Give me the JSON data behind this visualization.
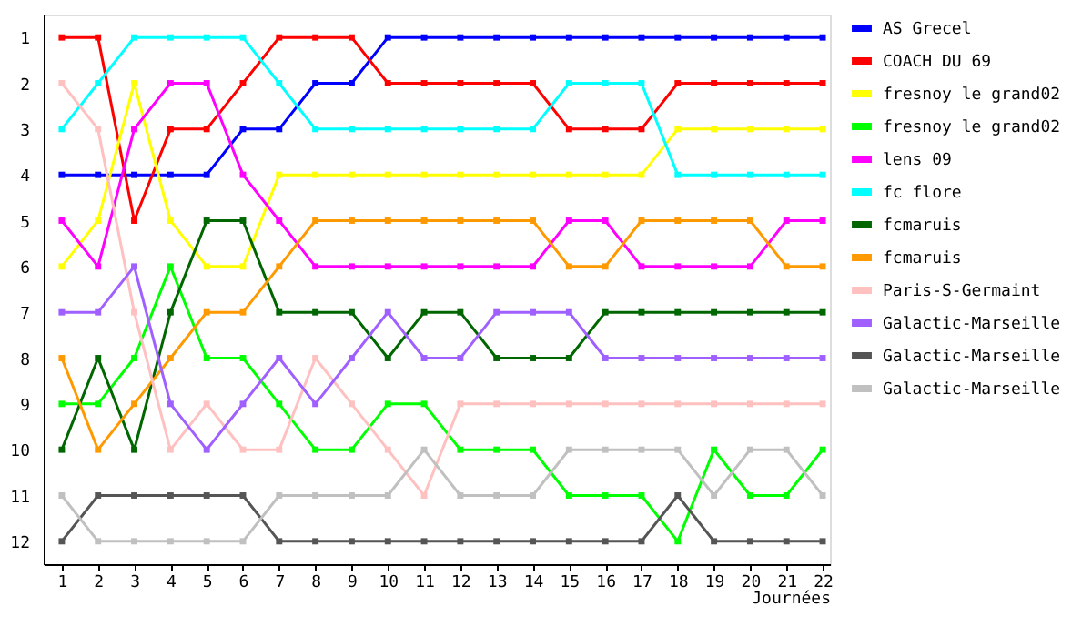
{
  "chart_data": {
    "type": "line",
    "xlabel": "Journées",
    "x": [
      1,
      2,
      3,
      4,
      5,
      6,
      7,
      8,
      9,
      10,
      11,
      12,
      13,
      14,
      15,
      16,
      17,
      18,
      19,
      20,
      21,
      22
    ],
    "xlim": [
      0.5,
      22.2
    ],
    "xticks": [
      1,
      2,
      3,
      4,
      5,
      6,
      7,
      8,
      9,
      10,
      11,
      12,
      13,
      14,
      15,
      16,
      17,
      18,
      19,
      20,
      21,
      22
    ],
    "ylim": [
      12.5,
      0.5
    ],
    "yticks": [
      1,
      2,
      3,
      4,
      5,
      6,
      7,
      8,
      9,
      10,
      11,
      12
    ],
    "grid": false,
    "legend": "right",
    "marker": "square",
    "line_style": "solid",
    "series": [
      {
        "name": "AS Grecel",
        "color": "#0000ff",
        "values": [
          4,
          4,
          4,
          4,
          4,
          3,
          3,
          2,
          2,
          1,
          1,
          1,
          1,
          1,
          1,
          1,
          1,
          1,
          1,
          1,
          1,
          1
        ]
      },
      {
        "name": "COACH DU 69",
        "color": "#ff0000",
        "values": [
          1,
          1,
          5,
          3,
          3,
          2,
          1,
          1,
          1,
          2,
          2,
          2,
          2,
          2,
          3,
          3,
          3,
          2,
          2,
          2,
          2,
          2
        ]
      },
      {
        "name": "fresnoy le grand02",
        "color": "#ffff00",
        "values": [
          6,
          5,
          2,
          5,
          6,
          6,
          4,
          4,
          4,
          4,
          4,
          4,
          4,
          4,
          4,
          4,
          4,
          3,
          3,
          3,
          3,
          3
        ]
      },
      {
        "name": "fresnoy le grand02",
        "color": "#00ff00",
        "values": [
          9,
          9,
          8,
          6,
          8,
          8,
          9,
          10,
          10,
          9,
          9,
          10,
          10,
          10,
          11,
          11,
          11,
          12,
          10,
          11,
          11,
          10
        ]
      },
      {
        "name": "lens 09",
        "color": "#ff00ff",
        "values": [
          5,
          6,
          3,
          2,
          2,
          4,
          5,
          6,
          6,
          6,
          6,
          6,
          6,
          6,
          5,
          5,
          6,
          6,
          6,
          6,
          5,
          5
        ]
      },
      {
        "name": "fc flore",
        "color": "#00ffff",
        "values": [
          3,
          2,
          1,
          1,
          1,
          1,
          2,
          3,
          3,
          3,
          3,
          3,
          3,
          3,
          2,
          2,
          2,
          4,
          4,
          4,
          4,
          4
        ]
      },
      {
        "name": "fcmaruis",
        "color": "#006600",
        "values": [
          10,
          8,
          10,
          7,
          5,
          5,
          7,
          7,
          7,
          8,
          7,
          7,
          8,
          8,
          8,
          7,
          7,
          7,
          7,
          7,
          7,
          7
        ]
      },
      {
        "name": "fcmaruis",
        "color": "#ff9900",
        "values": [
          8,
          10,
          9,
          8,
          7,
          7,
          6,
          5,
          5,
          5,
          5,
          5,
          5,
          5,
          6,
          6,
          5,
          5,
          5,
          5,
          6,
          6
        ]
      },
      {
        "name": "Paris-S-Germaint",
        "color": "#ffc0c0",
        "values": [
          2,
          3,
          7,
          10,
          9,
          10,
          10,
          8,
          9,
          10,
          11,
          9,
          9,
          9,
          9,
          9,
          9,
          9,
          9,
          9,
          9,
          9
        ]
      },
      {
        "name": "Galactic-Marseille",
        "color": "#a060ff",
        "values": [
          7,
          7,
          6,
          9,
          10,
          9,
          8,
          9,
          8,
          7,
          8,
          8,
          7,
          7,
          7,
          8,
          8,
          8,
          8,
          8,
          8,
          8
        ]
      },
      {
        "name": "Galactic-Marseille",
        "color": "#555555",
        "values": [
          12,
          11,
          11,
          11,
          11,
          11,
          12,
          12,
          12,
          12,
          12,
          12,
          12,
          12,
          12,
          12,
          12,
          11,
          12,
          12,
          12,
          12
        ]
      },
      {
        "name": "Galactic-Marseille",
        "color": "#c0c0c0",
        "values": [
          11,
          12,
          12,
          12,
          12,
          12,
          11,
          11,
          11,
          11,
          10,
          11,
          11,
          11,
          10,
          10,
          10,
          10,
          11,
          10,
          10,
          11
        ]
      }
    ]
  }
}
